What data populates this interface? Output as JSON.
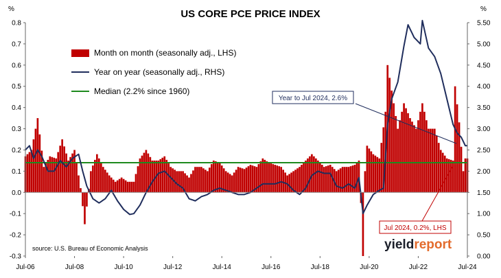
{
  "chart_data": {
    "type": "bar",
    "title": "US CORE PCE PRICE INDEX",
    "left_unit": "%",
    "right_unit": "%",
    "left_axis": {
      "min": -0.3,
      "max": 0.8,
      "ticks": [
        "-0.3",
        "-0.2",
        "-0.1",
        "0.0",
        "0.1",
        "0.2",
        "0.3",
        "0.4",
        "0.5",
        "0.6",
        "0.7",
        "0.8"
      ]
    },
    "right_axis": {
      "min": 0.0,
      "max": 5.5,
      "ticks": [
        "0.00",
        "0.50",
        "1.00",
        "1.50",
        "2.00",
        "2.50",
        "3.00",
        "3.50",
        "4.00",
        "4.50",
        "5.00",
        "5.50"
      ]
    },
    "x_start": "2006-07",
    "x_end": "2024-07",
    "x_ticks": [
      "Jul-06",
      "Jul-08",
      "Jul-10",
      "Jul-12",
      "Jul-14",
      "Jul-16",
      "Jul-18",
      "Jul-20",
      "Jul-22",
      "Jul-24"
    ],
    "grid": false,
    "legend_placement": "top-left",
    "colors": {
      "mom": "#c00000",
      "yoy": "#1f2d5c",
      "median": "#1e8a1e"
    },
    "legend": {
      "mom": "Month on month (seasonally adj., LHS)",
      "yoy": "Year on year (seasonally adj., RHS)",
      "median": "Median (2.2% since 1960)"
    },
    "median_value": 2.2,
    "source": "source: U.S. Bureau of Economic Analysis",
    "annotations": {
      "yoy_label": "Year to Jul 2024, 2.6%",
      "mom_label": "Jul 2024, 0.2%, LHS"
    },
    "logo": {
      "part1": "yield",
      "part2": "report"
    },
    "mom_anchors": [
      [
        "2006-07",
        0.17
      ],
      [
        "2006-10",
        0.2
      ],
      [
        "2007-01",
        0.35
      ],
      [
        "2007-04",
        0.12
      ],
      [
        "2007-07",
        0.17
      ],
      [
        "2007-10",
        0.16
      ],
      [
        "2008-01",
        0.25
      ],
      [
        "2008-04",
        0.15
      ],
      [
        "2008-07",
        0.2
      ],
      [
        "2008-10",
        0.02
      ],
      [
        "2008-12",
        -0.15
      ],
      [
        "2009-03",
        0.1
      ],
      [
        "2009-06",
        0.18
      ],
      [
        "2009-09",
        0.12
      ],
      [
        "2009-12",
        0.08
      ],
      [
        "2010-03",
        0.05
      ],
      [
        "2010-06",
        0.07
      ],
      [
        "2010-09",
        0.05
      ],
      [
        "2010-12",
        0.05
      ],
      [
        "2011-03",
        0.16
      ],
      [
        "2011-06",
        0.2
      ],
      [
        "2011-09",
        0.15
      ],
      [
        "2011-12",
        0.15
      ],
      [
        "2012-03",
        0.17
      ],
      [
        "2012-06",
        0.12
      ],
      [
        "2012-09",
        0.1
      ],
      [
        "2012-12",
        0.1
      ],
      [
        "2013-03",
        0.07
      ],
      [
        "2013-06",
        0.12
      ],
      [
        "2013-09",
        0.12
      ],
      [
        "2013-12",
        0.1
      ],
      [
        "2014-03",
        0.15
      ],
      [
        "2014-06",
        0.14
      ],
      [
        "2014-09",
        0.1
      ],
      [
        "2014-12",
        0.08
      ],
      [
        "2015-03",
        0.12
      ],
      [
        "2015-06",
        0.11
      ],
      [
        "2015-09",
        0.13
      ],
      [
        "2015-12",
        0.12
      ],
      [
        "2016-03",
        0.16
      ],
      [
        "2016-06",
        0.14
      ],
      [
        "2016-09",
        0.13
      ],
      [
        "2016-12",
        0.12
      ],
      [
        "2017-03",
        0.08
      ],
      [
        "2017-06",
        0.1
      ],
      [
        "2017-09",
        0.12
      ],
      [
        "2017-12",
        0.15
      ],
      [
        "2018-03",
        0.18
      ],
      [
        "2018-06",
        0.15
      ],
      [
        "2018-09",
        0.12
      ],
      [
        "2018-12",
        0.13
      ],
      [
        "2019-03",
        0.1
      ],
      [
        "2019-06",
        0.12
      ],
      [
        "2019-09",
        0.12
      ],
      [
        "2019-12",
        0.13
      ],
      [
        "2020-02",
        0.15
      ],
      [
        "2020-03",
        -0.05
      ],
      [
        "2020-04",
        -0.3
      ],
      [
        "2020-05",
        0.1
      ],
      [
        "2020-06",
        0.22
      ],
      [
        "2020-09",
        0.18
      ],
      [
        "2020-12",
        0.16
      ],
      [
        "2021-03",
        0.38
      ],
      [
        "2021-04",
        0.6
      ],
      [
        "2021-06",
        0.48
      ],
      [
        "2021-09",
        0.3
      ],
      [
        "2021-12",
        0.42
      ],
      [
        "2022-03",
        0.35
      ],
      [
        "2022-06",
        0.3
      ],
      [
        "2022-09",
        0.42
      ],
      [
        "2022-12",
        0.3
      ],
      [
        "2023-03",
        0.3
      ],
      [
        "2023-06",
        0.2
      ],
      [
        "2023-09",
        0.16
      ],
      [
        "2023-12",
        0.15
      ],
      [
        "2024-01",
        0.5
      ],
      [
        "2024-03",
        0.33
      ],
      [
        "2024-05",
        0.1
      ],
      [
        "2024-06",
        0.16
      ],
      [
        "2024-07",
        0.16
      ]
    ],
    "yoy_anchors": [
      [
        "2006-07",
        2.5
      ],
      [
        "2006-09",
        2.6
      ],
      [
        "2006-11",
        2.3
      ],
      [
        "2007-01",
        2.5
      ],
      [
        "2007-03",
        2.35
      ],
      [
        "2007-06",
        2.0
      ],
      [
        "2007-09",
        2.0
      ],
      [
        "2007-12",
        2.25
      ],
      [
        "2008-03",
        2.1
      ],
      [
        "2008-06",
        2.3
      ],
      [
        "2008-09",
        2.4
      ],
      [
        "2008-11",
        2.0
      ],
      [
        "2009-01",
        1.65
      ],
      [
        "2009-04",
        1.35
      ],
      [
        "2009-07",
        1.25
      ],
      [
        "2009-10",
        1.35
      ],
      [
        "2010-01",
        1.55
      ],
      [
        "2010-04",
        1.3
      ],
      [
        "2010-07",
        1.1
      ],
      [
        "2010-10",
        0.98
      ],
      [
        "2010-12",
        1.0
      ],
      [
        "2011-03",
        1.2
      ],
      [
        "2011-06",
        1.5
      ],
      [
        "2011-09",
        1.75
      ],
      [
        "2011-12",
        1.95
      ],
      [
        "2012-03",
        2.0
      ],
      [
        "2012-06",
        1.85
      ],
      [
        "2012-09",
        1.7
      ],
      [
        "2012-12",
        1.6
      ],
      [
        "2013-03",
        1.35
      ],
      [
        "2013-06",
        1.3
      ],
      [
        "2013-09",
        1.4
      ],
      [
        "2013-12",
        1.45
      ],
      [
        "2014-03",
        1.55
      ],
      [
        "2014-06",
        1.6
      ],
      [
        "2014-09",
        1.55
      ],
      [
        "2014-12",
        1.5
      ],
      [
        "2015-03",
        1.45
      ],
      [
        "2015-06",
        1.45
      ],
      [
        "2015-09",
        1.5
      ],
      [
        "2015-12",
        1.6
      ],
      [
        "2016-03",
        1.7
      ],
      [
        "2016-06",
        1.7
      ],
      [
        "2016-09",
        1.7
      ],
      [
        "2016-12",
        1.75
      ],
      [
        "2017-03",
        1.7
      ],
      [
        "2017-06",
        1.55
      ],
      [
        "2017-09",
        1.45
      ],
      [
        "2017-12",
        1.6
      ],
      [
        "2018-03",
        1.9
      ],
      [
        "2018-06",
        2.0
      ],
      [
        "2018-09",
        1.95
      ],
      [
        "2018-12",
        1.95
      ],
      [
        "2019-03",
        1.65
      ],
      [
        "2019-06",
        1.6
      ],
      [
        "2019-09",
        1.7
      ],
      [
        "2019-12",
        1.6
      ],
      [
        "2020-02",
        1.85
      ],
      [
        "2020-04",
        1.0
      ],
      [
        "2020-06",
        1.2
      ],
      [
        "2020-09",
        1.45
      ],
      [
        "2020-12",
        1.55
      ],
      [
        "2021-02",
        1.6
      ],
      [
        "2021-04",
        3.1
      ],
      [
        "2021-06",
        3.7
      ],
      [
        "2021-09",
        4.1
      ],
      [
        "2021-12",
        4.95
      ],
      [
        "2022-02",
        5.45
      ],
      [
        "2022-05",
        5.15
      ],
      [
        "2022-08",
        5.0
      ],
      [
        "2022-09",
        5.55
      ],
      [
        "2022-12",
        4.9
      ],
      [
        "2023-03",
        4.7
      ],
      [
        "2023-06",
        4.3
      ],
      [
        "2023-09",
        3.7
      ],
      [
        "2023-12",
        3.1
      ],
      [
        "2024-02",
        2.9
      ],
      [
        "2024-04",
        2.8
      ],
      [
        "2024-06",
        2.6
      ],
      [
        "2024-07",
        2.6
      ]
    ]
  }
}
